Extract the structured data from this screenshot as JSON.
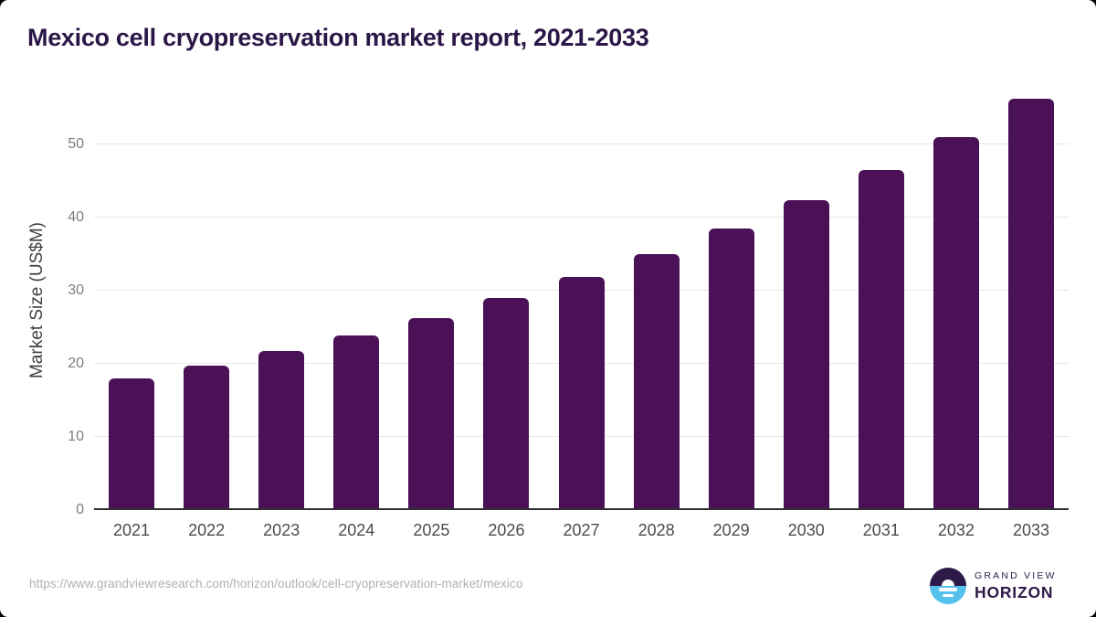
{
  "header": {
    "title": "Mexico cell cryopreservation market report, 2021-2033",
    "title_color": "#2b1747"
  },
  "chart_data": {
    "type": "bar",
    "title": "Mexico cell cryopreservation market report, 2021-2033",
    "categories": [
      "2021",
      "2022",
      "2023",
      "2024",
      "2025",
      "2026",
      "2027",
      "2028",
      "2029",
      "2030",
      "2031",
      "2032",
      "2033"
    ],
    "values": [
      17.7,
      19.5,
      21.5,
      23.6,
      26.0,
      28.7,
      31.6,
      34.8,
      38.2,
      42.1,
      46.2,
      50.8,
      56.0
    ],
    "xlabel": "",
    "ylabel": "Market Size (US$M)",
    "yticks": [
      0,
      10,
      20,
      30,
      40,
      50
    ],
    "ylim": [
      0,
      57.3
    ],
    "grid": true,
    "legend_position": "none",
    "bar_color": "#4a1157",
    "gridline_color": "#e7e7e7",
    "axis_line_color": "#2f2f2f",
    "ytick_label_color": "#7d7d7d",
    "ylabel_color": "#3f3f3f",
    "xtick_label_color": "#4b4b4b"
  },
  "footer": {
    "source_url": "https://www.grandviewresearch.com/horizon/outlook/cell-cryopreservation-market/mexico",
    "source_url_color": "#b0b0b0",
    "logo": {
      "name_top": "GRAND VIEW",
      "name_bottom": "HORIZON",
      "purple": "#2e1a47",
      "blue": "#56c1ec"
    }
  }
}
